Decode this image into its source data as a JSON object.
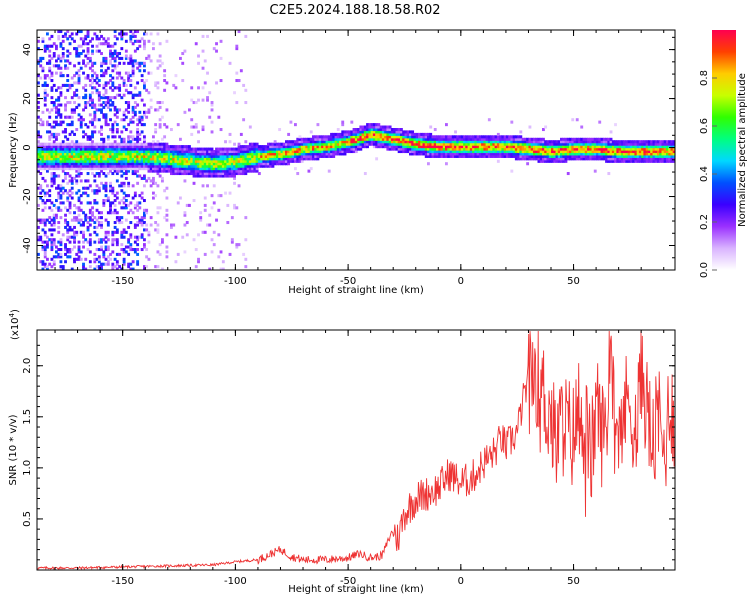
{
  "title": "C2E5.2024.188.18.58.R02",
  "chart_data": [
    {
      "type": "heatmap",
      "xlabel": "Height of straight line (km)",
      "ylabel": "Frequency (Hz)",
      "xlim": [
        -188,
        95
      ],
      "ylim": [
        -50,
        48
      ],
      "xticks": [
        -150,
        -100,
        -50,
        0,
        50
      ],
      "yticks": [
        -40,
        -20,
        0,
        20,
        40
      ],
      "colorbar": {
        "label": "Normalized spectral amplitude",
        "range": [
          0,
          1
        ],
        "ticks": [
          "0.0",
          "0.2",
          "0.4",
          "0.6",
          "0.8"
        ],
        "colors": [
          "#ffffff",
          "#d9b3ff",
          "#9a30ff",
          "#3a00ff",
          "#0050ff",
          "#00d8ff",
          "#00ff80",
          "#30ff00",
          "#c8ff00",
          "#ffcc00",
          "#ff4000",
          "#ff0050"
        ]
      },
      "ridge": {
        "x": [
          -140,
          -130,
          -120,
          -110,
          -100,
          -90,
          -80,
          -70,
          -60,
          -50,
          -40,
          -30,
          -20,
          -10,
          0,
          10,
          20,
          30,
          40,
          50,
          60,
          70,
          80,
          90
        ],
        "y": [
          -4,
          -5,
          -6,
          -7,
          -6,
          -4,
          -3,
          -1,
          0,
          2,
          5,
          3,
          1,
          0,
          0,
          0,
          0,
          -1,
          -2,
          -1,
          -1,
          -2,
          -2,
          -2
        ]
      }
    },
    {
      "type": "line",
      "xlabel": "Height of straight line (km)",
      "ylabel": "SNR (10 * v/v)",
      "yscale_label": "(x10",
      "yscale_exponent": "4",
      "yscale_suffix": ")",
      "xlim": [
        -188,
        95
      ],
      "ylim": [
        0,
        2.35
      ],
      "xticks": [
        -150,
        -100,
        -50,
        0,
        50
      ],
      "yticks": [
        "0.5",
        "1.0",
        "1.5",
        "2.0"
      ],
      "color": "#ee3333",
      "x": [
        -188,
        -170,
        -150,
        -130,
        -110,
        -100,
        -90,
        -85,
        -80,
        -75,
        -70,
        -60,
        -50,
        -45,
        -40,
        -35,
        -30,
        -28,
        -25,
        -20,
        -15,
        -10,
        -5,
        0,
        5,
        10,
        15,
        18,
        20,
        25,
        28,
        30,
        33,
        36,
        40,
        42,
        45,
        50,
        52,
        55,
        58,
        60,
        63,
        65,
        66,
        70,
        75,
        78,
        80,
        85,
        88,
        90,
        93,
        95
      ],
      "y": [
        0.02,
        0.02,
        0.03,
        0.04,
        0.05,
        0.08,
        0.1,
        0.15,
        0.2,
        0.13,
        0.1,
        0.1,
        0.12,
        0.16,
        0.12,
        0.14,
        0.4,
        0.3,
        0.55,
        0.7,
        0.75,
        0.8,
        0.95,
        0.85,
        0.9,
        1.05,
        1.15,
        1.3,
        1.2,
        1.35,
        1.7,
        1.85,
        2.0,
        1.75,
        1.5,
        1.2,
        1.45,
        1.3,
        1.6,
        1.4,
        1.1,
        1.65,
        1.3,
        1.5,
        2.3,
        1.4,
        1.7,
        1.3,
        2.0,
        1.2,
        1.5,
        1.1,
        1.7,
        1.4
      ]
    }
  ]
}
